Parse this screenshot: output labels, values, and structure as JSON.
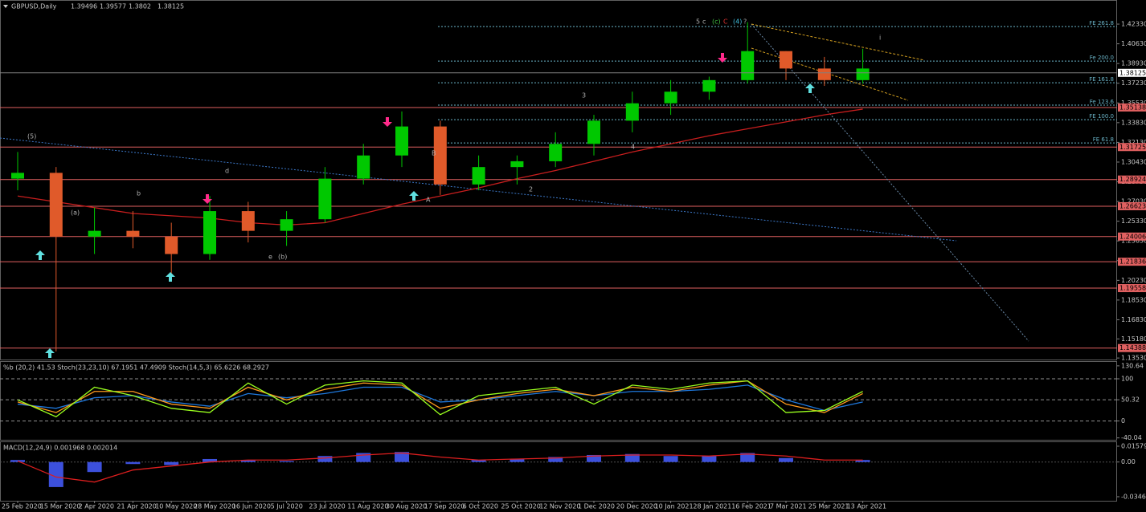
{
  "chart_data": [
    {
      "type": "candlestick",
      "title": "GBPUSD,Daily",
      "ohlc": [
        1.39496,
        1.39577,
        1.3802,
        1.38125
      ],
      "categories": [
        "25 Feb 2020",
        "15 Mar 2020",
        "2 Apr 2020",
        "21 Apr 2020",
        "10 May 2020",
        "28 May 2020",
        "16 Jun 2020",
        "5 Jul 2020",
        "23 Jul 2020",
        "11 Aug 2020",
        "30 Aug 2020",
        "17 Sep 2020",
        "6 Oct 2020",
        "25 Oct 2020",
        "12 Nov 2020",
        "1 Dec 2020",
        "20 Dec 2020",
        "10 Jan 2021",
        "28 Jan 2021",
        "16 Feb 2021",
        "7 Mar 2021",
        "25 Mar 2021",
        "13 Apr 2021"
      ],
      "open": [
        1.29,
        1.295,
        1.24,
        1.245,
        1.24,
        1.225,
        1.262,
        1.245,
        1.255,
        1.29,
        1.31,
        1.335,
        1.285,
        1.3,
        1.305,
        1.32,
        1.34,
        1.355,
        1.365,
        1.375,
        1.4,
        1.385,
        1.375
      ],
      "high": [
        1.313,
        1.3,
        1.265,
        1.262,
        1.252,
        1.275,
        1.27,
        1.262,
        1.3,
        1.32,
        1.348,
        1.34,
        1.31,
        1.31,
        1.33,
        1.345,
        1.365,
        1.375,
        1.378,
        1.425,
        1.4,
        1.395,
        1.402
      ],
      "low": [
        1.28,
        1.141,
        1.225,
        1.23,
        1.207,
        1.22,
        1.235,
        1.232,
        1.252,
        1.285,
        1.3,
        1.276,
        1.28,
        1.285,
        1.3,
        1.31,
        1.33,
        1.345,
        1.358,
        1.372,
        1.375,
        1.37,
        1.372
      ],
      "close": [
        1.295,
        1.24,
        1.245,
        1.24,
        1.225,
        1.262,
        1.245,
        1.255,
        1.29,
        1.31,
        1.335,
        1.285,
        1.3,
        1.305,
        1.32,
        1.34,
        1.355,
        1.365,
        1.375,
        1.4,
        1.385,
        1.375,
        1.385
      ],
      "up_color": "#00c800",
      "down_color": "#e05a2a",
      "moving_average": {
        "color": "#c81e1e",
        "values": [
          1.275,
          1.27,
          1.265,
          1.26,
          1.258,
          1.256,
          1.252,
          1.25,
          1.252,
          1.26,
          1.268,
          1.275,
          1.282,
          1.29,
          1.297,
          1.305,
          1.313,
          1.32,
          1.327,
          1.333,
          1.339,
          1.345,
          1.35
        ]
      },
      "levels": [
        1.35138,
        1.31725,
        1.28924,
        1.26623,
        1.24006,
        1.21836,
        1.19558,
        1.14388
      ],
      "level_color": "#e06060",
      "fib_levels": [
        {
          "value": 1.4212,
          "label": "FE 261.8"
        },
        {
          "value": 1.3914,
          "label": "Fe 200.0"
        },
        {
          "value": 1.3727,
          "label": "FE 161.8"
        },
        {
          "value": 1.3534,
          "label": "Fe 123.6"
        },
        {
          "value": 1.3409,
          "label": "FE 100.0"
        },
        {
          "value": 1.3208,
          "label": "FE 61.8"
        }
      ],
      "annotations": [
        "5",
        "c",
        "(c)",
        "C",
        "(4)",
        "?",
        "(5)",
        "(a)",
        "b",
        "d",
        "e",
        "(b)",
        "A",
        "B",
        "3",
        "4",
        "2",
        "i"
      ],
      "ylim": [
        1.134,
        1.4344
      ],
      "yticks": [
        {
          "value": 1.4233,
          "label": "1.42330"
        },
        {
          "value": 1.4063,
          "label": "1.40630"
        },
        {
          "value": 1.3893,
          "label": "1.38930"
        },
        {
          "value": 1.3723,
          "label": "1.37230"
        },
        {
          "value": 1.3553,
          "label": "1.35530"
        },
        {
          "value": 1.3383,
          "label": "1.33830"
        },
        {
          "value": 1.3213,
          "label": "1.32130"
        },
        {
          "value": 1.3043,
          "label": "1.30430"
        },
        {
          "value": 1.2873,
          "label": "1.28730"
        },
        {
          "value": 1.2703,
          "label": "1.27030"
        },
        {
          "value": 1.2533,
          "label": "1.25330"
        },
        {
          "value": 1.2363,
          "label": "1.23630"
        },
        {
          "value": 1.2193,
          "label": "1.21930"
        },
        {
          "value": 1.2023,
          "label": "1.20230"
        },
        {
          "value": 1.1853,
          "label": "1.18530"
        },
        {
          "value": 1.1683,
          "label": "1.16830"
        },
        {
          "value": 1.1518,
          "label": "1.15180"
        },
        {
          "value": 1.1353,
          "label": "1.13530"
        }
      ]
    },
    {
      "type": "line",
      "title": "%b (20,2) 41.53  Stoch(23,23,10) 67.1951 47.4909  Stoch(14,5,3) 65.6226 68.2927",
      "series": [
        {
          "color": "#1e78dc",
          "values": [
            40,
            30,
            55,
            60,
            45,
            35,
            65,
            55,
            65,
            80,
            80,
            45,
            50,
            60,
            70,
            60,
            70,
            70,
            75,
            85,
            50,
            25,
            45
          ]
        },
        {
          "color": "#ff9a1e",
          "values": [
            45,
            20,
            70,
            70,
            40,
            30,
            80,
            50,
            75,
            90,
            85,
            30,
            50,
            65,
            75,
            60,
            80,
            70,
            85,
            95,
            40,
            20,
            65
          ]
        },
        {
          "color": "#9aff1e",
          "values": [
            50,
            10,
            80,
            60,
            30,
            20,
            90,
            40,
            85,
            95,
            90,
            15,
            60,
            70,
            80,
            40,
            85,
            75,
            90,
            95,
            20,
            25,
            70
          ]
        }
      ],
      "ylim": [
        -44.5,
        138
      ],
      "yticks": [
        130.64,
        100,
        50.32,
        0,
        -40.04
      ]
    },
    {
      "type": "macd",
      "title": "MACD(12,24,9) 0.001968 0.002014",
      "histogram": {
        "color": "#3c50dc",
        "values": [
          0.002,
          -0.025,
          -0.01,
          -0.002,
          -0.003,
          0.003,
          0.002,
          0.001,
          0.006,
          0.009,
          0.01,
          0.0,
          0.002,
          0.003,
          0.005,
          0.007,
          0.008,
          0.006,
          0.006,
          0.009,
          0.004,
          0.0,
          0.002
        ]
      },
      "signal": {
        "color": "#dc1e1e",
        "values": [
          0.001,
          -0.015,
          -0.02,
          -0.008,
          -0.004,
          0.0,
          0.002,
          0.002,
          0.004,
          0.007,
          0.009,
          0.005,
          0.002,
          0.003,
          0.004,
          0.006,
          0.007,
          0.007,
          0.006,
          0.008,
          0.006,
          0.002,
          0.002
        ]
      },
      "ylim": [
        -0.0387,
        0.019
      ],
      "yticks": [
        0.015795,
        {
          "value": 0,
          "label": "0.00"
        },
        -0.034665
      ]
    }
  ]
}
